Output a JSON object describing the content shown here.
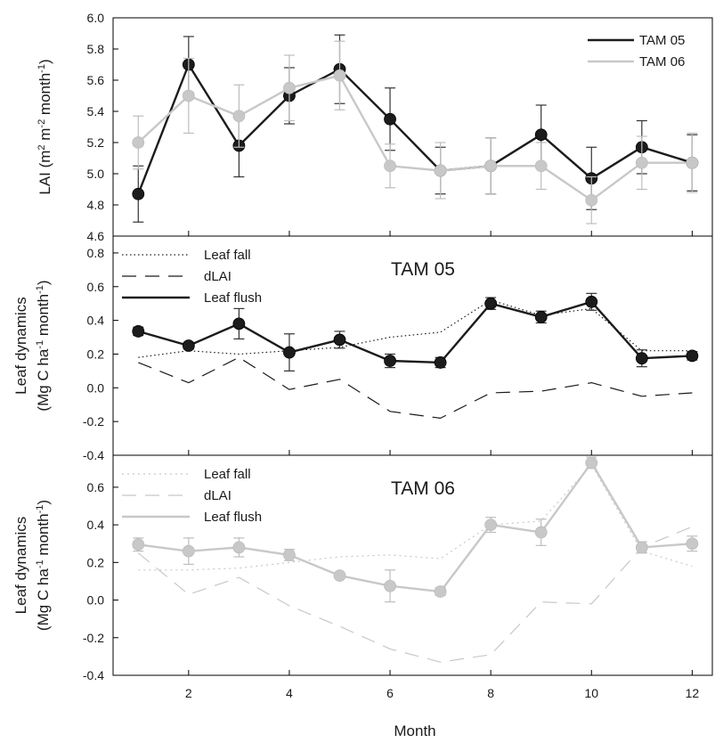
{
  "colors": {
    "tam05": "#1c1c1c",
    "tam06": "#c8c8c8",
    "axis": "#000000"
  },
  "x_axis": {
    "label": "Month",
    "ticks": [
      "2",
      "4",
      "6",
      "8",
      "10",
      "12"
    ]
  },
  "chart_data": [
    {
      "type": "line",
      "panel": "top",
      "ylabel": "LAI (m2 m-2 month-1)",
      "ylabel_parts": {
        "base": "LAI (m",
        "sup1": "2",
        "mid1": " m",
        "sup2": "-2",
        "mid2": " month",
        "sup3": "-1",
        "end": ")"
      },
      "xlim": [
        0.5,
        12.4
      ],
      "ylim": [
        4.6,
        6.0
      ],
      "yticks": [
        "4.6",
        "4.8",
        "5.0",
        "5.2",
        "5.4",
        "5.6",
        "5.8",
        "6.0"
      ],
      "legend": {
        "position": "top-right",
        "entries": [
          "TAM 05",
          "TAM 06"
        ]
      },
      "series": [
        {
          "name": "TAM 05",
          "style": "solid-dark",
          "x": [
            1,
            2,
            3,
            4,
            5,
            6,
            7,
            8,
            9,
            10,
            11,
            12
          ],
          "y": [
            4.87,
            5.7,
            5.18,
            5.5,
            5.67,
            5.35,
            5.02,
            5.05,
            5.25,
            4.97,
            5.17,
            5.07
          ],
          "err": [
            0.18,
            0.18,
            0.2,
            0.18,
            0.22,
            0.2,
            0.15,
            0.18,
            0.19,
            0.2,
            0.17,
            0.18
          ]
        },
        {
          "name": "TAM 06",
          "style": "solid-light",
          "x": [
            1,
            2,
            3,
            4,
            5,
            6,
            7,
            8,
            9,
            10,
            11,
            12
          ],
          "y": [
            5.2,
            5.5,
            5.37,
            5.55,
            5.63,
            5.05,
            5.02,
            5.05,
            5.05,
            4.83,
            5.07,
            5.07
          ],
          "err": [
            0.17,
            0.24,
            0.2,
            0.21,
            0.22,
            0.14,
            0.18,
            0.18,
            0.15,
            0.15,
            0.17,
            0.19
          ]
        }
      ]
    },
    {
      "type": "line",
      "panel": "middle",
      "title": "TAM 05",
      "ylabel": [
        "Leaf dynamics",
        "(Mg C ha-1 month-1)"
      ],
      "ylabel_parts": {
        "line1": "Leaf dynamics",
        "base": "(Mg C ha",
        "sup1": "-1",
        "mid1": " month",
        "sup2": "-1",
        "end": ")"
      },
      "xlim": [
        0.5,
        12.4
      ],
      "ylim": [
        -0.4,
        0.9
      ],
      "yticks": [
        "-0.4",
        "-0.2",
        "0.0",
        "0.2",
        "0.4",
        "0.6",
        "0.8"
      ],
      "legend": {
        "position": "top-left",
        "entries": [
          "Leaf fall",
          "dLAI",
          "Leaf flush"
        ]
      },
      "series": [
        {
          "name": "Leaf fall",
          "style": "dotted-dark",
          "x": [
            1,
            2,
            3,
            4,
            5,
            6,
            7,
            8,
            9,
            10,
            11,
            12
          ],
          "y": [
            0.18,
            0.22,
            0.2,
            0.22,
            0.24,
            0.3,
            0.33,
            0.52,
            0.43,
            0.47,
            0.22,
            0.22
          ]
        },
        {
          "name": "dLAI",
          "style": "dashed-dark",
          "x": [
            1,
            2,
            3,
            4,
            5,
            6,
            7,
            8,
            9,
            10,
            11,
            12
          ],
          "y": [
            0.15,
            0.03,
            0.18,
            -0.01,
            0.05,
            -0.14,
            -0.18,
            -0.03,
            -0.02,
            0.03,
            -0.05,
            -0.03
          ]
        },
        {
          "name": "Leaf flush",
          "style": "solid-dark",
          "x": [
            1,
            2,
            3,
            4,
            5,
            6,
            7,
            8,
            9,
            10,
            11,
            12
          ],
          "y": [
            0.335,
            0.25,
            0.38,
            0.21,
            0.285,
            0.16,
            0.15,
            0.5,
            0.42,
            0.51,
            0.175,
            0.19
          ],
          "err": [
            0.025,
            0.02,
            0.09,
            0.11,
            0.05,
            0.04,
            0.03,
            0.035,
            0.035,
            0.05,
            0.05,
            0.025
          ]
        }
      ]
    },
    {
      "type": "line",
      "panel": "bottom",
      "title": "TAM 06",
      "ylabel": [
        "Leaf dynamics",
        "(Mg C ha-1 month-1)"
      ],
      "ylabel_parts": {
        "line1": "Leaf dynamics",
        "base": "(Mg C ha",
        "sup1": "-1",
        "mid1": " month",
        "sup2": "-1",
        "end": ")"
      },
      "xlim": [
        0.5,
        12.4
      ],
      "ylim": [
        -0.4,
        0.77
      ],
      "yticks": [
        "-0.4",
        "-0.2",
        "0.0",
        "0.2",
        "0.4",
        "0.6"
      ],
      "legend": {
        "position": "top-left",
        "entries": [
          "Leaf fall",
          "dLAI",
          "Leaf flush"
        ]
      },
      "series": [
        {
          "name": "Leaf fall",
          "style": "dotted-light",
          "x": [
            1,
            2,
            3,
            4,
            5,
            6,
            7,
            8,
            9,
            10,
            11,
            12
          ],
          "y": [
            0.16,
            0.16,
            0.17,
            0.2,
            0.23,
            0.24,
            0.22,
            0.4,
            0.42,
            0.72,
            0.26,
            0.18
          ]
        },
        {
          "name": "dLAI",
          "style": "dashed-light",
          "x": [
            1,
            2,
            3,
            4,
            5,
            6,
            7,
            8,
            9,
            10,
            11,
            12
          ],
          "y": [
            0.25,
            0.03,
            0.12,
            -0.03,
            -0.14,
            -0.26,
            -0.33,
            -0.29,
            -0.01,
            -0.02,
            0.28,
            0.39
          ]
        },
        {
          "name": "Leaf flush",
          "style": "solid-light",
          "x": [
            1,
            2,
            3,
            4,
            5,
            6,
            7,
            8,
            9,
            10,
            11,
            12
          ],
          "y": [
            0.295,
            0.26,
            0.28,
            0.24,
            0.13,
            0.075,
            0.045,
            0.4,
            0.36,
            0.73,
            0.28,
            0.3
          ],
          "err": [
            0.035,
            0.07,
            0.05,
            0.03,
            0.015,
            0.085,
            0.02,
            0.04,
            0.07,
            0.03,
            0.03,
            0.04
          ]
        }
      ]
    }
  ]
}
